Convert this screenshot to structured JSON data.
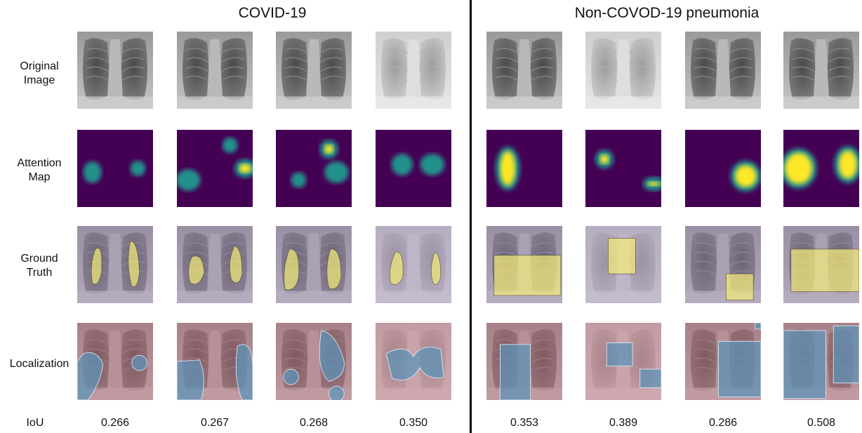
{
  "groups": [
    {
      "title": "COVID-19"
    },
    {
      "title": "Non-COVOD-19 pneumonia"
    }
  ],
  "row_labels": [
    "Original\nImage",
    "Attention\nMap",
    "Ground\nTruth",
    "Localization",
    "IoU"
  ],
  "iou_values": [
    "0.266",
    "0.267",
    "0.268",
    "0.350",
    "0.353",
    "0.389",
    "0.286",
    "0.508"
  ],
  "colors": {
    "viridis_dark": "#440154",
    "viridis_mid": "#21918c",
    "viridis_bright": "#fde725",
    "ground_truth_overlay": "#f2ea7a",
    "localization_background": "#b56a78",
    "localization_region": "#5e93b8",
    "non_lesion_tint": "#9a86b0"
  },
  "icons": {
    "image_type": "chest-xray-icon"
  }
}
